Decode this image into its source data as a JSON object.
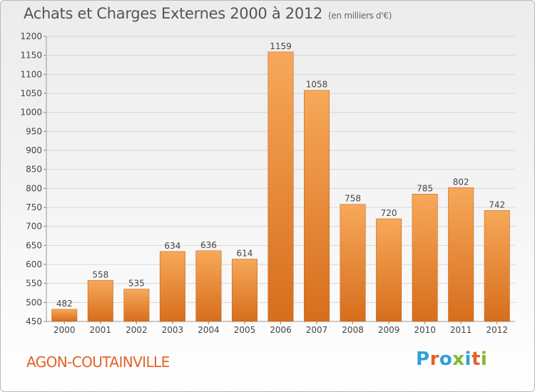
{
  "header": {
    "title": "Achats et Charges Externes 2000 à 2012",
    "unit": "(en milliers d'€)"
  },
  "footer": {
    "city": "AGON-COUTAINVILLE",
    "logo_text": "Proxiti"
  },
  "colors": {
    "bar_top": "#f7a85a",
    "bar_bottom": "#d66e1c",
    "city_text": "#e2622a",
    "logo_letters": [
      "#2e9fd8",
      "#e2622a",
      "#2e9fd8",
      "#7dbb2a",
      "#2e9fd8",
      "#e2622a",
      "#7dbb2a"
    ]
  },
  "chart_data": {
    "type": "bar",
    "title": "Achats et Charges Externes 2000 à 2012",
    "subtitle": "(en milliers d'€)",
    "xlabel": "",
    "ylabel": "",
    "categories": [
      "2000",
      "2001",
      "2002",
      "2003",
      "2004",
      "2005",
      "2006",
      "2007",
      "2008",
      "2009",
      "2010",
      "2011",
      "2012"
    ],
    "values": [
      482,
      558,
      535,
      634,
      636,
      614,
      1159,
      1058,
      758,
      720,
      785,
      802,
      742
    ],
    "data_labels": [
      "482",
      "558",
      "535",
      "634",
      "636",
      "614",
      "1159",
      "1058",
      "758",
      "720",
      "785",
      "802",
      "742"
    ],
    "ylim": [
      450,
      1200
    ],
    "yticks": [
      450,
      500,
      550,
      600,
      650,
      700,
      750,
      800,
      850,
      900,
      950,
      1000,
      1050,
      1100,
      1150,
      1200
    ],
    "ytick_labels": [
      "450",
      "500",
      "550",
      "600",
      "650",
      "700",
      "750",
      "800",
      "850",
      "900",
      "950",
      "1000",
      "1050",
      "1100",
      "1150",
      "1200"
    ],
    "grid": true,
    "legend": "none"
  }
}
